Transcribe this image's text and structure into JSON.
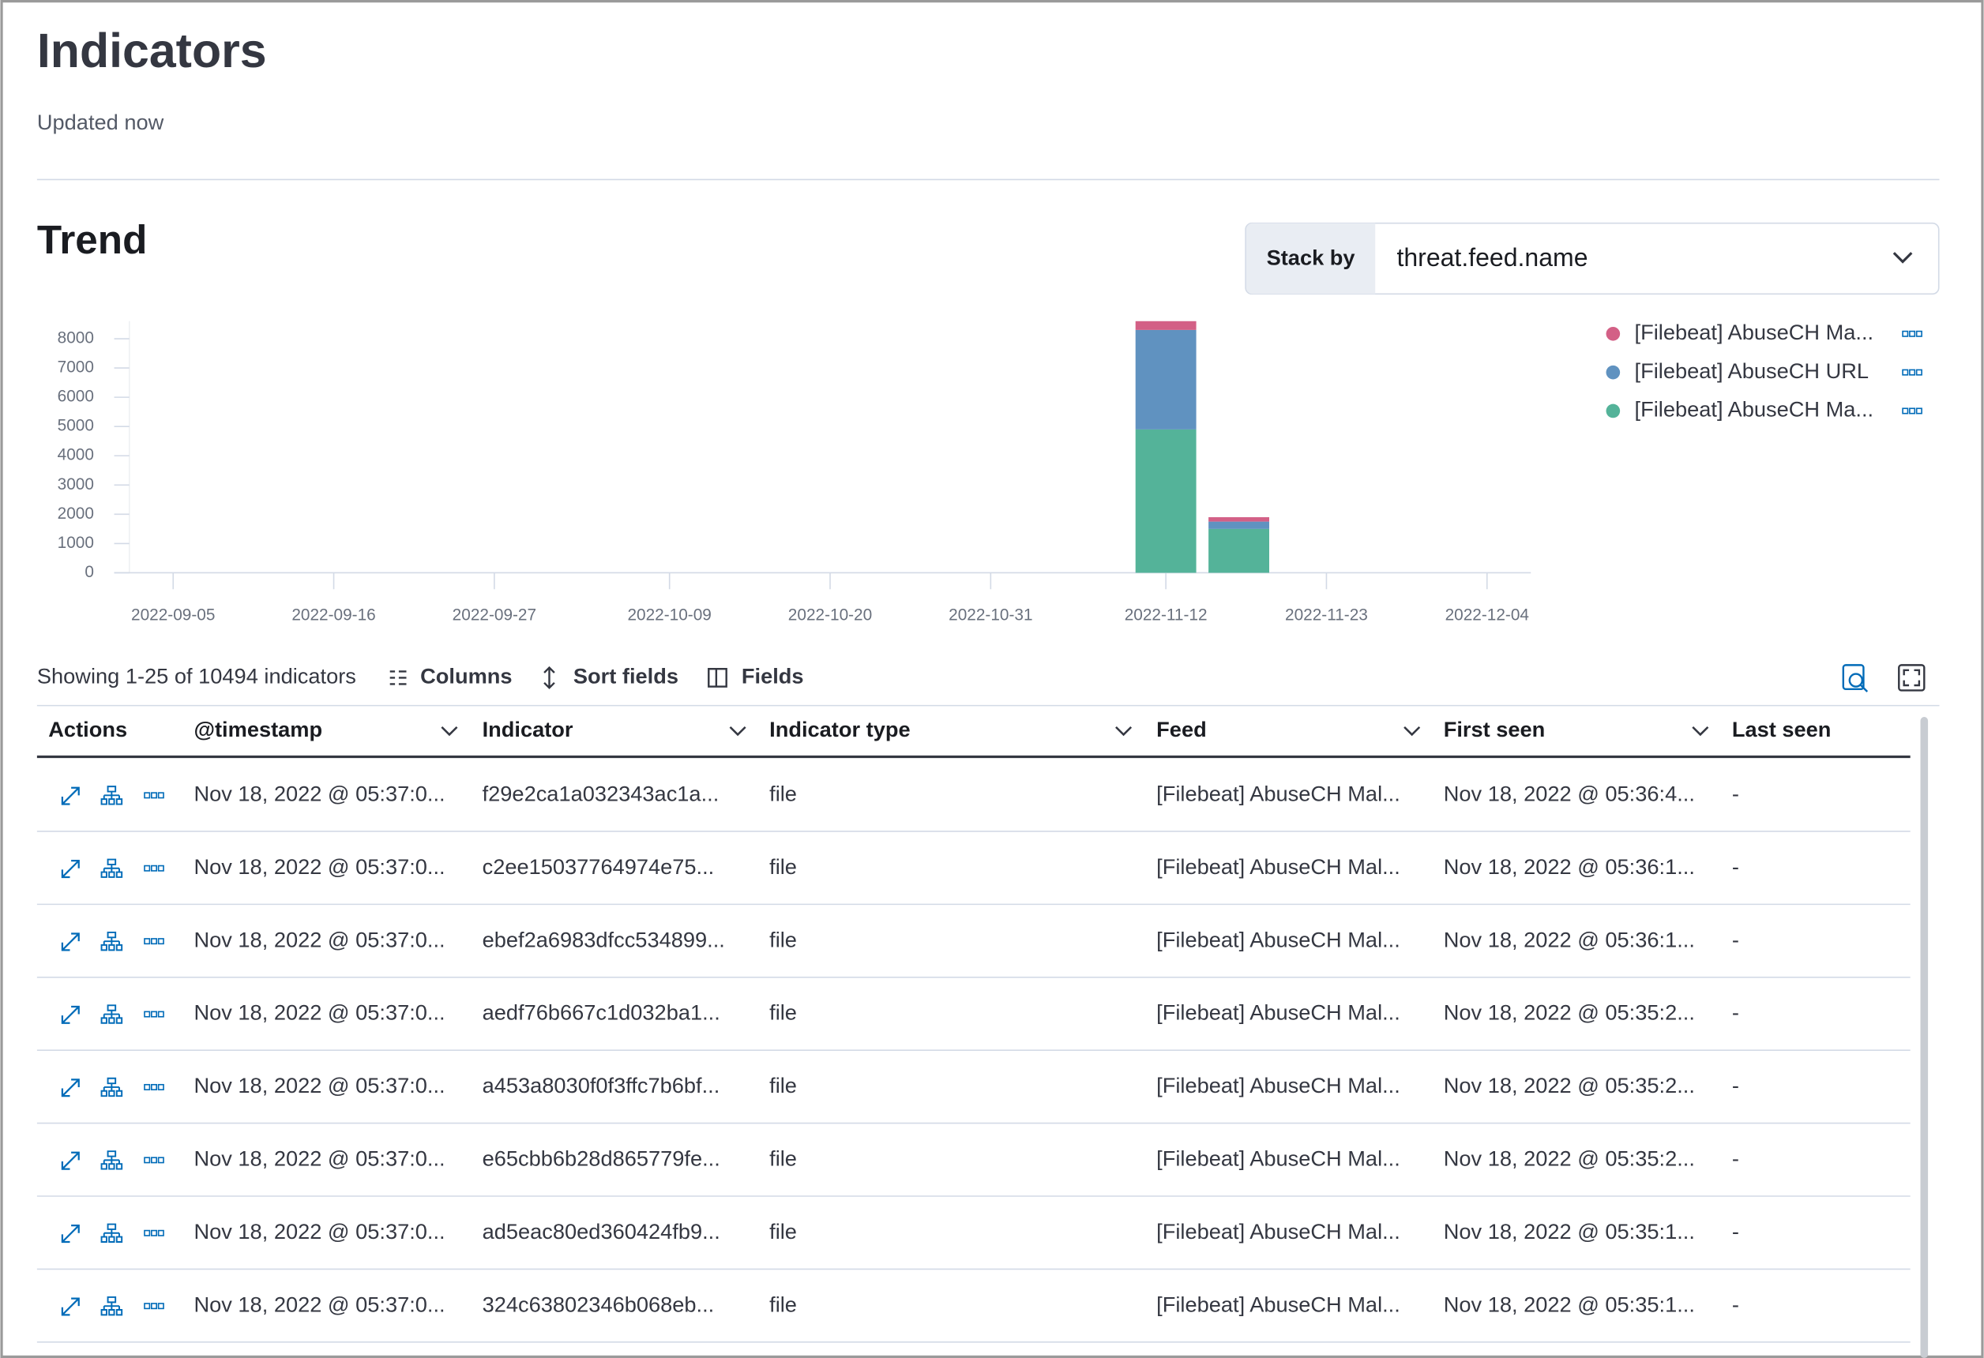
{
  "header": {
    "title": "Indicators",
    "subtitle": "Updated now"
  },
  "trend": {
    "title": "Trend",
    "stack_by_label": "Stack by",
    "stack_by_value": "threat.feed.name"
  },
  "chart_data": {
    "type": "bar",
    "stacked": true,
    "x": [
      "2022-11-12",
      "2022-11-17"
    ],
    "series": [
      {
        "name": "[Filebeat] AbuseCH Ma...",
        "color": "#d36086",
        "values": [
          300,
          150
        ]
      },
      {
        "name": "[Filebeat] AbuseCH URL",
        "color": "#6092c0",
        "values": [
          3400,
          250
        ]
      },
      {
        "name": "[Filebeat] AbuseCH Ma...",
        "color": "#54b399",
        "values": [
          4900,
          1500
        ]
      }
    ],
    "xlim": [
      "2022-09-02",
      "2022-12-07"
    ],
    "xticks": [
      "2022-09-05",
      "2022-09-16",
      "2022-09-27",
      "2022-10-09",
      "2022-10-20",
      "2022-10-31",
      "2022-11-12",
      "2022-11-23",
      "2022-12-04"
    ],
    "ylim": [
      0,
      8600
    ],
    "yticks": [
      0,
      1000,
      2000,
      3000,
      4000,
      5000,
      6000,
      7000,
      8000
    ],
    "legend": "right"
  },
  "toolbar": {
    "showing": "Showing 1-25 of 10494 indicators",
    "columns": "Columns",
    "sort_fields": "Sort fields",
    "fields": "Fields"
  },
  "table": {
    "columns": [
      "Actions",
      "@timestamp",
      "Indicator",
      "Indicator type",
      "Feed",
      "First seen",
      "Last seen"
    ],
    "rows": [
      [
        "Nov 18, 2022 @ 05:37:0...",
        "f29e2ca1a032343ac1a...",
        "file",
        "[Filebeat] AbuseCH Mal...",
        "Nov 18, 2022 @ 05:36:4...",
        "-"
      ],
      [
        "Nov 18, 2022 @ 05:37:0...",
        "c2ee15037764974e75...",
        "file",
        "[Filebeat] AbuseCH Mal...",
        "Nov 18, 2022 @ 05:36:1...",
        "-"
      ],
      [
        "Nov 18, 2022 @ 05:37:0...",
        "ebef2a6983dfcc534899...",
        "file",
        "[Filebeat] AbuseCH Mal...",
        "Nov 18, 2022 @ 05:36:1...",
        "-"
      ],
      [
        "Nov 18, 2022 @ 05:37:0...",
        "aedf76b667c1d032ba1...",
        "file",
        "[Filebeat] AbuseCH Mal...",
        "Nov 18, 2022 @ 05:35:2...",
        "-"
      ],
      [
        "Nov 18, 2022 @ 05:37:0...",
        "a453a8030f0f3ffc7b6bf...",
        "file",
        "[Filebeat] AbuseCH Mal...",
        "Nov 18, 2022 @ 05:35:2...",
        "-"
      ],
      [
        "Nov 18, 2022 @ 05:37:0...",
        "e65cbb6b28d865779fe...",
        "file",
        "[Filebeat] AbuseCH Mal...",
        "Nov 18, 2022 @ 05:35:2...",
        "-"
      ],
      [
        "Nov 18, 2022 @ 05:37:0...",
        "ad5eac80ed360424fb9...",
        "file",
        "[Filebeat] AbuseCH Mal...",
        "Nov 18, 2022 @ 05:35:1...",
        "-"
      ],
      [
        "Nov 18, 2022 @ 05:37:0...",
        "324c63802346b068eb...",
        "file",
        "[Filebeat] AbuseCH Mal...",
        "Nov 18, 2022 @ 05:35:1...",
        "-"
      ]
    ]
  }
}
